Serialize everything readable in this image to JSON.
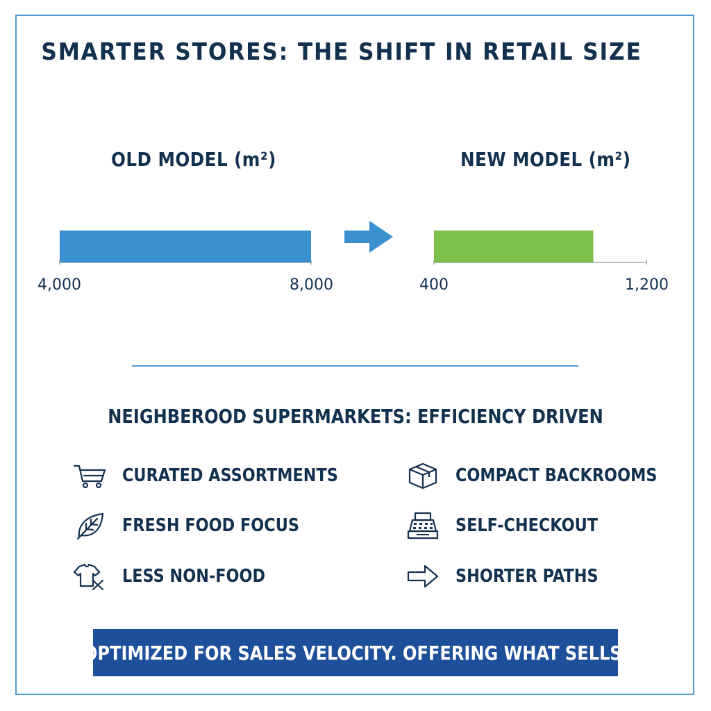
{
  "title": "SMARTER STORES: THE SHIFT IN RETAIL SIZE",
  "chart_data": [
    {
      "type": "bar",
      "title": "OLD MODEL (m²)",
      "unit": "m²",
      "range": [
        4000,
        8000
      ],
      "tick_labels": [
        "4,000",
        "8,000"
      ],
      "color": "#3b91cf"
    },
    {
      "type": "bar",
      "title": "NEW MODEL (m²)",
      "unit": "m²",
      "axis": [
        400,
        1200
      ],
      "range": [
        400,
        1000
      ],
      "tick_labels": [
        "400",
        "1,200"
      ],
      "color": "#7cc04b"
    }
  ],
  "subtitle": "NEIGHBEROOD SUPERMARKETS: EFFICIENCY DRIVEN",
  "features": [
    {
      "label": "CURATED ASSORTMENTS",
      "icon": "shopping-cart-icon"
    },
    {
      "label": "COMPACT BACKROOMS",
      "icon": "box-icon"
    },
    {
      "label": "FRESH FOOD FOCUS",
      "icon": "leaf-icon"
    },
    {
      "label": "SELF-CHECKOUT",
      "icon": "cash-register-icon"
    },
    {
      "label": "LESS NON-FOOD",
      "icon": "shirt-crossed-icon"
    },
    {
      "label": "SHORTER PATHS",
      "icon": "arrow-right-icon"
    }
  ],
  "banner": "OPTIMIZED FOR SALES VELOCITY. OFFERING WHAT SELLS.",
  "colors": {
    "accent": "#4f9ad0",
    "text": "#13304f",
    "banner": "#1e4f9a",
    "old_bar": "#3b91cf",
    "new_bar": "#7cc04b",
    "arrow": "#3b91cf"
  }
}
